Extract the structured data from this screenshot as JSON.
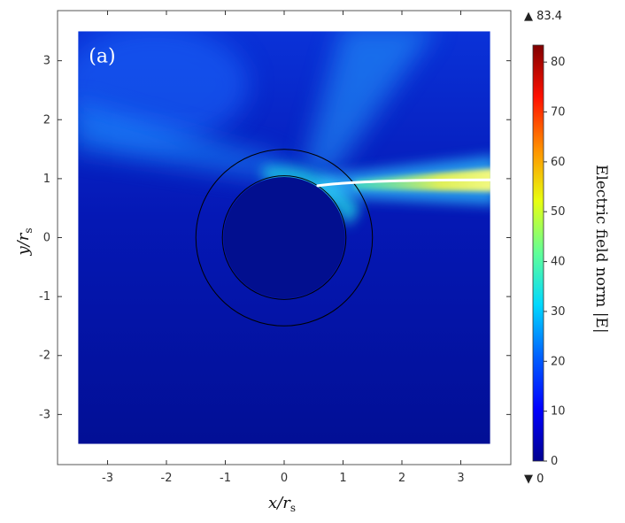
{
  "chart_data": {
    "type": "heatmap",
    "panel_label": "(a)",
    "xlabel": "x/r",
    "xlabel_sub": "s",
    "ylabel": "y/r",
    "ylabel_sub": "s",
    "xlim": [
      -3.85,
      3.85
    ],
    "ylim": [
      -3.85,
      3.85
    ],
    "domain": [
      -3.5,
      3.5
    ],
    "xticks": [
      -3,
      -2,
      -1,
      0,
      1,
      2,
      3
    ],
    "yticks": [
      -3,
      -2,
      -1,
      0,
      1,
      2,
      3
    ],
    "circles": [
      {
        "name": "inner-boundary",
        "r": 1.05
      },
      {
        "name": "outer-boundary",
        "r": 1.5
      }
    ],
    "beam": {
      "y_start": 0.88,
      "x_start": 0.57,
      "x_end": 3.5,
      "y_end": 0.98,
      "color": "#ffffff"
    },
    "colorbar": {
      "label": "Electric field norm |E|",
      "min": 0,
      "max": 83.4,
      "range_max_label": "▲ 83.4",
      "range_min_label": "▼ 0",
      "ticks": [
        0,
        10,
        20,
        30,
        40,
        50,
        60,
        70,
        80
      ],
      "colormap": [
        "#00008f",
        "#0000ff",
        "#0080ff",
        "#00ffff",
        "#80ff80",
        "#ffff00",
        "#ff8000",
        "#ff0000",
        "#800000"
      ]
    }
  }
}
